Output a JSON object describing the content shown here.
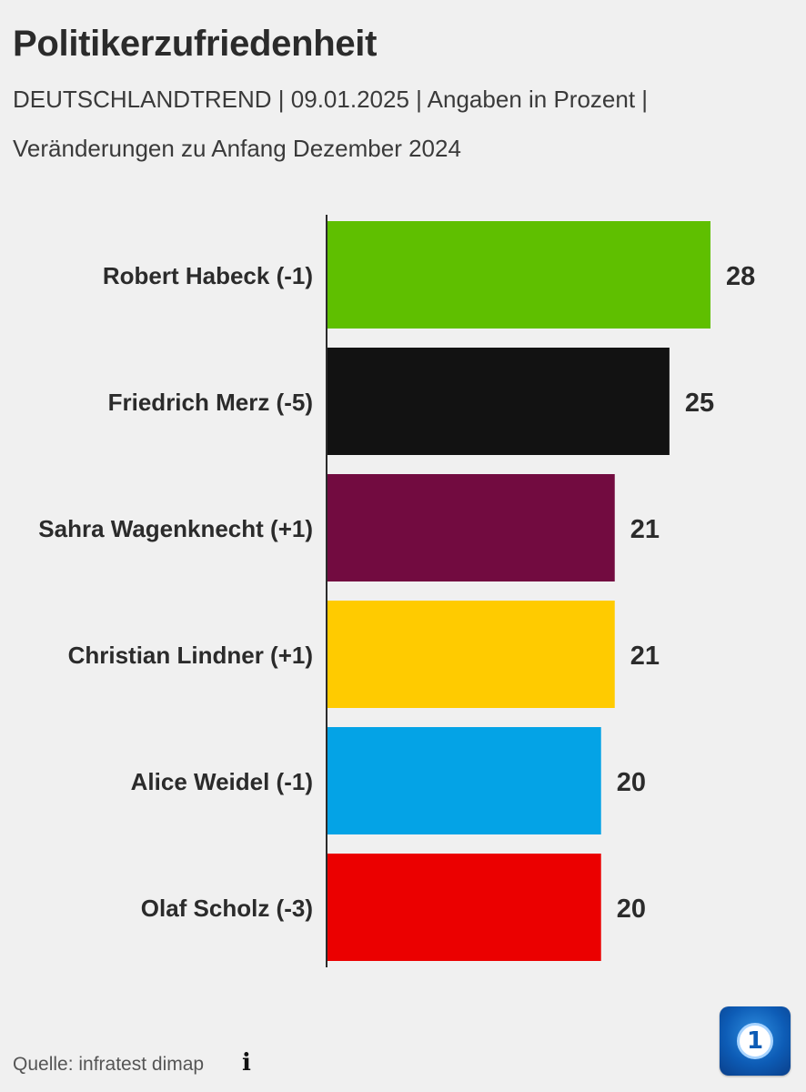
{
  "header": {
    "title": "Politikerzufriedenheit",
    "subtitle_line1": "DEUTSCHLANDTREND | 09.01.2025 | Angaben in Prozent |",
    "subtitle_line2": "Veränderungen zu Anfang Dezember 2024"
  },
  "footer": {
    "source": "Quelle: infratest dimap",
    "info_icon": "info-icon",
    "logo_icon": "ard-logo-icon"
  },
  "chart_data": {
    "type": "bar",
    "orientation": "horizontal",
    "categories": [
      "Robert Habeck (-1)",
      "Friedrich Merz (-5)",
      "Sahra Wagenknecht (+1)",
      "Christian Lindner (+1)",
      "Alice Weidel (-1)",
      "Olaf Scholz (-3)"
    ],
    "values": [
      28,
      25,
      21,
      21,
      20,
      20
    ],
    "colors": [
      "#5fbf00",
      "#121212",
      "#720b40",
      "#ffcb00",
      "#04a3e6",
      "#eb0000"
    ],
    "value_labels": [
      "28",
      "25",
      "21",
      "21",
      "20",
      "20"
    ],
    "xlim": [
      0,
      30
    ],
    "grid": false,
    "legend": "none"
  }
}
